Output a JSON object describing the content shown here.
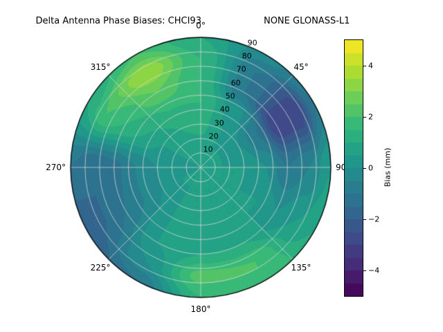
{
  "header": {
    "title_left": "Delta Antenna Phase Biases: CHCI93",
    "title_right": "NONE GLONASS-L1"
  },
  "chart_data": {
    "type": "heatmap",
    "projection": "polar",
    "title": "Delta Antenna Phase Biases: CHCI93         NONE GLONASS-L1",
    "theta_zero_location": "N",
    "theta_direction": "clockwise",
    "angle_labels": [
      "0°",
      "45°",
      "90°",
      "135°",
      "180°",
      "225°",
      "270°",
      "315°"
    ],
    "radial_ticks": [
      10,
      20,
      30,
      40,
      50,
      60,
      70,
      80,
      90
    ],
    "radial_max": 90,
    "levels_step": 0.5,
    "colorbar": {
      "label": "Bias (mm)",
      "ticks": [
        4,
        2,
        0,
        -2,
        -4
      ],
      "tick_labels": [
        "4",
        "2",
        "0",
        "−2",
        "−4"
      ],
      "range": [
        -5,
        5
      ],
      "colormap": "viridis"
    },
    "grid": {
      "azimuth_deg": [
        0,
        30,
        60,
        90,
        120,
        150,
        180,
        210,
        240,
        270,
        300,
        330
      ],
      "radius": [
        0,
        15,
        30,
        45,
        60,
        75,
        90
      ],
      "bias_mm": [
        [
          0.5,
          0.8,
          1.2,
          1.5,
          1.5,
          1.5,
          1.0
        ],
        [
          0.5,
          0.5,
          0.5,
          0.3,
          -1.0,
          -1.0,
          -0.3
        ],
        [
          0.5,
          0.5,
          0.0,
          -1.0,
          -3.0,
          -3.0,
          -1.0
        ],
        [
          0.5,
          0.5,
          0.5,
          0.0,
          -1.0,
          -0.5,
          0.5
        ],
        [
          0.5,
          0.5,
          0.5,
          0.5,
          0.0,
          0.5,
          1.0
        ],
        [
          0.5,
          0.5,
          0.5,
          0.5,
          1.0,
          2.0,
          2.0
        ],
        [
          0.5,
          0.5,
          0.5,
          1.0,
          1.0,
          2.2,
          1.5
        ],
        [
          0.5,
          0.5,
          0.5,
          0.5,
          0.5,
          0.0,
          -1.0
        ],
        [
          0.5,
          0.5,
          0.0,
          -0.5,
          -1.0,
          -1.5,
          -2.0
        ],
        [
          0.5,
          0.3,
          0.0,
          -0.5,
          -1.2,
          -1.5,
          -1.0
        ],
        [
          0.5,
          0.5,
          0.5,
          1.0,
          1.5,
          2.0,
          1.0
        ],
        [
          0.5,
          0.8,
          1.0,
          1.5,
          2.5,
          3.5,
          2.0
        ]
      ]
    }
  },
  "colors": {
    "background": "#ffffff",
    "grid_line": "#dcdcdc",
    "outline": "#000000",
    "viridis": [
      "#440154",
      "#482878",
      "#3e4989",
      "#31688e",
      "#26828e",
      "#1f9e89",
      "#35b779",
      "#6ece58",
      "#b5de2b",
      "#fde725"
    ]
  }
}
